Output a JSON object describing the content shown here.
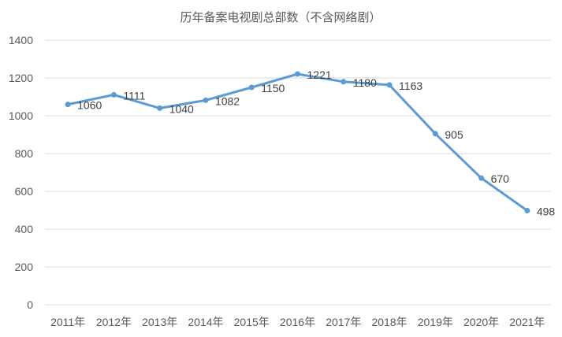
{
  "chart_data": {
    "type": "line",
    "title": "历年备案电视剧总部数（不含网络剧）",
    "xlabel": "",
    "ylabel": "",
    "categories": [
      "2011年",
      "2012年",
      "2013年",
      "2014年",
      "2015年",
      "2016年",
      "2017年",
      "2018年",
      "2019年",
      "2020年",
      "2021年"
    ],
    "series": [
      {
        "values": [
          1060,
          1111,
          1040,
          1082,
          1150,
          1221,
          1180,
          1163,
          905,
          670,
          498
        ],
        "color": "#5b9bd5"
      }
    ],
    "ylim": [
      0,
      1400
    ],
    "yticks": [
      0,
      200,
      400,
      600,
      800,
      1000,
      1200,
      1400
    ],
    "grid": true,
    "data_labels": true,
    "legend": "none"
  }
}
